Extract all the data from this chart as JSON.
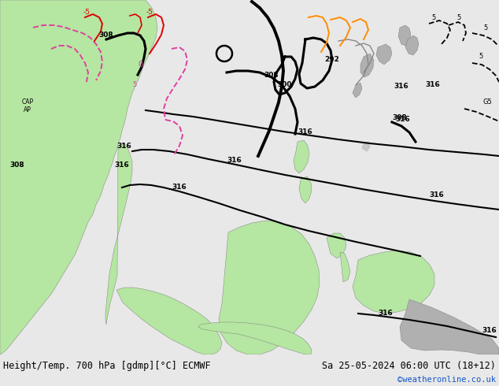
{
  "title": "Height/Temp. 700 hPa [gdmp][°C] ECMWF",
  "date_label": "Sa 25-05-2024 06:00 UTC (18+12)",
  "credit": "©weatheronline.co.uk",
  "credit_color": "#1155cc",
  "bottom_text_color": "#000000",
  "fig_width": 6.34,
  "fig_height": 4.9,
  "dpi": 100,
  "title_fontsize": 8.5,
  "date_fontsize": 8.5,
  "credit_fontsize": 7.5,
  "bg_color": "#c8c8c8",
  "ocean_color": "#c8c8c8",
  "land_green": "#b5e6a2",
  "land_gray": "#b0b0b0",
  "bottom_bg": "#e8e8e8",
  "map_bg": "#c8c8c8"
}
